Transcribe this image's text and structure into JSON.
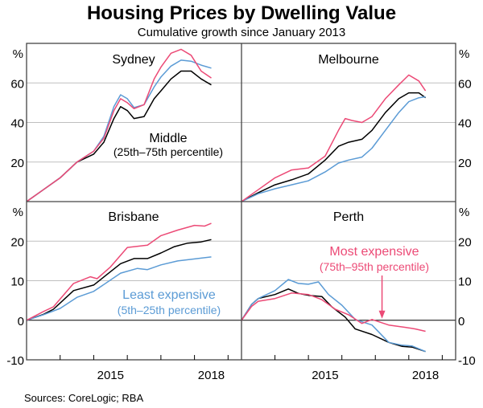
{
  "colors": {
    "middle": "#000000",
    "least_expensive": "#5b9bd5",
    "most_expensive": "#ec4a76"
  },
  "chart_data": {
    "type": "line",
    "title": "Housing Prices by Dwelling Value",
    "subtitle": "Cumulative growth since January 2013",
    "source": "Sources: CoreLogic; RBA",
    "x_unit": "decimal year",
    "x_range": [
      2013.0,
      2019.4
    ],
    "x_tick_labels": [
      "2015",
      "2018"
    ],
    "panels": [
      {
        "name": "Sydney",
        "ylabel": "%",
        "ylim": [
          0,
          80
        ],
        "yticks": [
          20,
          40,
          60
        ],
        "ytick_labels": [
          "20",
          "40",
          "60"
        ],
        "series": [
          {
            "name": "Middle (25th–75th percentile)",
            "key": "middle",
            "x": [
              2013.0,
              2013.5,
              2014.0,
              2014.5,
              2015.0,
              2015.3,
              2015.6,
              2015.8,
              2016.0,
              2016.2,
              2016.5,
              2016.8,
              2017.0,
              2017.3,
              2017.6,
              2017.9,
              2018.2,
              2018.5
            ],
            "y": [
              0,
              6,
              12,
              20,
              24,
              30,
              42,
              48,
              46,
              42,
              43,
              52,
              56,
              62,
              66,
              66,
              62,
              59
            ]
          },
          {
            "name": "Least expensive (5th–25th percentile)",
            "key": "least_expensive",
            "x": [
              2013.0,
              2013.5,
              2014.0,
              2014.5,
              2015.0,
              2015.3,
              2015.6,
              2015.8,
              2016.0,
              2016.2,
              2016.5,
              2016.8,
              2017.0,
              2017.3,
              2017.6,
              2017.9,
              2018.2,
              2018.5
            ],
            "y": [
              0,
              6,
              12,
              20,
              25.5,
              33,
              48,
              54,
              52,
              47.5,
              49,
              58,
              63,
              68.5,
              71.5,
              71,
              69,
              67.5
            ]
          },
          {
            "name": "Most expensive (75th–95th percentile)",
            "key": "most_expensive",
            "x": [
              2013.0,
              2013.5,
              2014.0,
              2014.5,
              2015.0,
              2015.3,
              2015.6,
              2015.8,
              2016.0,
              2016.2,
              2016.5,
              2016.8,
              2017.0,
              2017.3,
              2017.6,
              2017.9,
              2018.2,
              2018.5
            ],
            "y": [
              0,
              6,
              12,
              20,
              25.5,
              32,
              46,
              52,
              50,
              47,
              49,
              62,
              68,
              75,
              77,
              74,
              66,
              62.5
            ]
          }
        ],
        "annotations": [
          {
            "text": "Middle",
            "sub": "(25th–75th percentile)",
            "key": "middle"
          }
        ]
      },
      {
        "name": "Melbourne",
        "ylabel": "%",
        "ylim": [
          0,
          80
        ],
        "yticks": [
          20,
          40,
          60
        ],
        "ytick_labels": [
          "20",
          "40",
          "60"
        ],
        "series": [
          {
            "name": "Middle (25th–75th percentile)",
            "key": "middle",
            "x": [
              2013.0,
              2013.5,
              2014.0,
              2014.5,
              2015.0,
              2015.5,
              2015.9,
              2016.2,
              2016.6,
              2016.9,
              2017.3,
              2017.7,
              2018.0,
              2018.3,
              2018.5
            ],
            "y": [
              0,
              4.5,
              8.5,
              11,
              14,
              21,
              28,
              30,
              31.5,
              36,
              45,
              52,
              55,
              55,
              52.5
            ]
          },
          {
            "name": "Least expensive (5th–25th percentile)",
            "key": "least_expensive",
            "x": [
              2013.0,
              2013.5,
              2014.0,
              2014.5,
              2015.0,
              2015.5,
              2015.9,
              2016.2,
              2016.6,
              2016.9,
              2017.3,
              2017.7,
              2018.0,
              2018.3,
              2018.5
            ],
            "y": [
              0,
              4,
              6.5,
              8.5,
              10.5,
              15,
              19.5,
              21,
              22.5,
              27,
              36,
              45,
              50.5,
              52.5,
              53
            ]
          },
          {
            "name": "Most expensive (75th–95th percentile)",
            "key": "most_expensive",
            "x": [
              2013.0,
              2013.5,
              2014.0,
              2014.5,
              2015.0,
              2015.5,
              2015.9,
              2016.1,
              2016.3,
              2016.6,
              2016.9,
              2017.3,
              2017.7,
              2018.0,
              2018.3,
              2018.5
            ],
            "y": [
              0,
              6,
              12,
              16,
              17,
              23,
              36,
              42,
              41,
              40,
              43,
              52,
              59,
              64,
              61,
              56
            ]
          }
        ]
      },
      {
        "name": "Brisbane",
        "ylabel": "%",
        "ylim": [
          -10,
          30
        ],
        "yticks": [
          -10,
          0,
          10,
          20
        ],
        "ytick_labels": [
          "-10",
          "0",
          "10",
          "20"
        ],
        "series": [
          {
            "name": "Middle (25th–75th percentile)",
            "key": "middle",
            "x": [
              2013.0,
              2013.5,
              2013.8,
              2014.4,
              2015.0,
              2015.8,
              2016.2,
              2016.6,
              2017.0,
              2017.4,
              2017.8,
              2018.2,
              2018.5
            ],
            "y": [
              0,
              1.5,
              2.8,
              7.5,
              8.9,
              14.3,
              15.6,
              15.6,
              17,
              18.6,
              19.5,
              19.8,
              20.4
            ]
          },
          {
            "name": "Least expensive (5th–25th percentile)",
            "key": "least_expensive",
            "x": [
              2013.0,
              2013.5,
              2014.0,
              2014.5,
              2015.0,
              2015.8,
              2016.3,
              2016.6,
              2017.0,
              2017.5,
              2018.0,
              2018.5
            ],
            "y": [
              0,
              1.4,
              3,
              5.8,
              7.3,
              11.9,
              13.1,
              12.8,
              14,
              15,
              15.5,
              16
            ]
          },
          {
            "name": "Most expensive (75th–95th percentile)",
            "key": "most_expensive",
            "x": [
              2013.0,
              2013.5,
              2013.8,
              2014.4,
              2014.9,
              2015.1,
              2015.5,
              2016.0,
              2016.6,
              2017.0,
              2017.5,
              2018.0,
              2018.3,
              2018.5
            ],
            "y": [
              0,
              2.2,
              3.4,
              9.3,
              11,
              10.5,
              13.5,
              18.4,
              19,
              21.4,
              22.8,
              24,
              23.8,
              24.5
            ]
          }
        ],
        "annotations": [
          {
            "text": "Least expensive",
            "sub": "(5th–25th percentile)",
            "key": "least_expensive"
          }
        ]
      },
      {
        "name": "Perth",
        "ylabel": "%",
        "ylim": [
          -10,
          30
        ],
        "yticks": [
          -10,
          0,
          10,
          20
        ],
        "ytick_labels": [
          "-10",
          "0",
          "10",
          "20"
        ],
        "series": [
          {
            "name": "Middle (25th–75th percentile)",
            "key": "middle",
            "x": [
              2013.0,
              2013.3,
              2013.5,
              2014.0,
              2014.4,
              2014.7,
              2015.0,
              2015.4,
              2015.7,
              2016.1,
              2016.4,
              2016.9,
              2017.4,
              2017.8,
              2018.1,
              2018.5
            ],
            "y": [
              0,
              4,
              5.5,
              6.5,
              7.9,
              6.8,
              6.3,
              6,
              3.4,
              0.8,
              -2.2,
              -3.6,
              -5.6,
              -6.6,
              -6.8,
              -7.9
            ]
          },
          {
            "name": "Least expensive (5th–25th percentile)",
            "key": "least_expensive",
            "x": [
              2013.0,
              2013.3,
              2013.5,
              2014.0,
              2014.4,
              2014.7,
              2015.0,
              2015.3,
              2015.6,
              2016.0,
              2016.4,
              2016.9,
              2017.4,
              2017.8,
              2018.1,
              2018.5
            ],
            "y": [
              0,
              4,
              5.5,
              7.5,
              10.3,
              9.3,
              9.1,
              9.7,
              6.5,
              3.8,
              0.2,
              -1.2,
              -5.6,
              -6.3,
              -6.5,
              -7.9
            ]
          },
          {
            "name": "Most expensive (75th–95th percentile)",
            "key": "most_expensive",
            "x": [
              2013.0,
              2013.3,
              2013.5,
              2014.0,
              2014.5,
              2015.0,
              2015.4,
              2015.8,
              2016.2,
              2016.6,
              2016.9,
              2017.4,
              2017.9,
              2018.2,
              2018.5
            ],
            "y": [
              0,
              3.5,
              4.8,
              5.5,
              6.9,
              6.5,
              5.2,
              2.8,
              1.4,
              -0.8,
              0.2,
              -1.2,
              -1.8,
              -2.2,
              -2.8
            ]
          }
        ],
        "annotations": [
          {
            "text": "Most expensive",
            "sub": "(75th–95th percentile)",
            "key": "most_expensive",
            "arrow_to": {
              "x": 2017.2,
              "y": 0.2
            }
          }
        ]
      }
    ]
  }
}
